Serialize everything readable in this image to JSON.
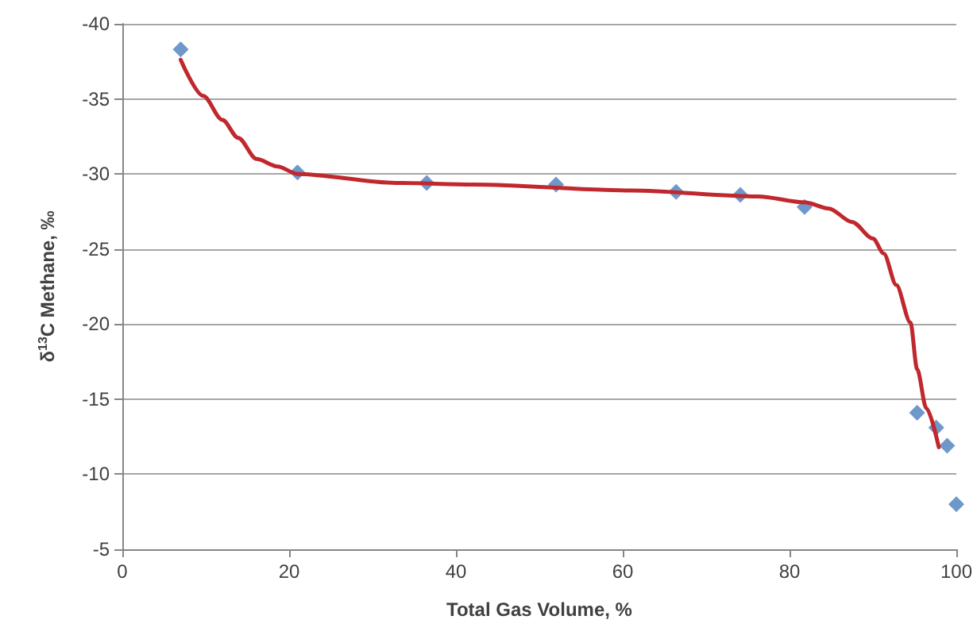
{
  "chart_data": {
    "type": "scatter",
    "xlabel": "Total Gas Volume, %",
    "ylabel": "δ$^{13}$C Methane, ‰",
    "xlim": [
      0,
      100
    ],
    "xticks": [
      0,
      20,
      40,
      60,
      80,
      100
    ],
    "ylim": [
      -5,
      -40
    ],
    "yticks": [
      -40,
      -35,
      -30,
      -25,
      -20,
      -15,
      -10,
      -5
    ],
    "grid": "y",
    "marker": "diamond",
    "series": [
      {
        "color": "#4a7ebb",
        "x": [
          7.0,
          21.0,
          36.5,
          52.0,
          66.4,
          74.1,
          81.8,
          95.3,
          97.6,
          98.9,
          100
        ],
        "values": [
          -38.3,
          -30.1,
          -29.4,
          -29.3,
          -28.8,
          -28.6,
          -27.8,
          -14.1,
          -13.1,
          -11.9,
          -8.0
        ]
      },
      {
        "type": "line",
        "color": "#c0282d",
        "marker": "none",
        "line_style": "solid",
        "x": [
          7,
          9.7,
          12,
          13.9,
          16.1,
          18.6,
          21,
          32.8,
          42.2,
          61.1,
          76.2,
          81.9,
          84.7,
          87.5,
          90,
          91.3,
          92.8,
          94.5,
          95.3,
          96.4,
          97.9
        ],
        "values": [
          -37.6,
          -35.2,
          -33.6,
          -32.4,
          -31.0,
          -30.5,
          -30.0,
          -29.4,
          -29.3,
          -28.9,
          -28.5,
          -28.1,
          -27.7,
          -26.8,
          -25.7,
          -24.7,
          -22.6,
          -20.1,
          -17.0,
          -14.4,
          -11.8
        ]
      }
    ]
  }
}
